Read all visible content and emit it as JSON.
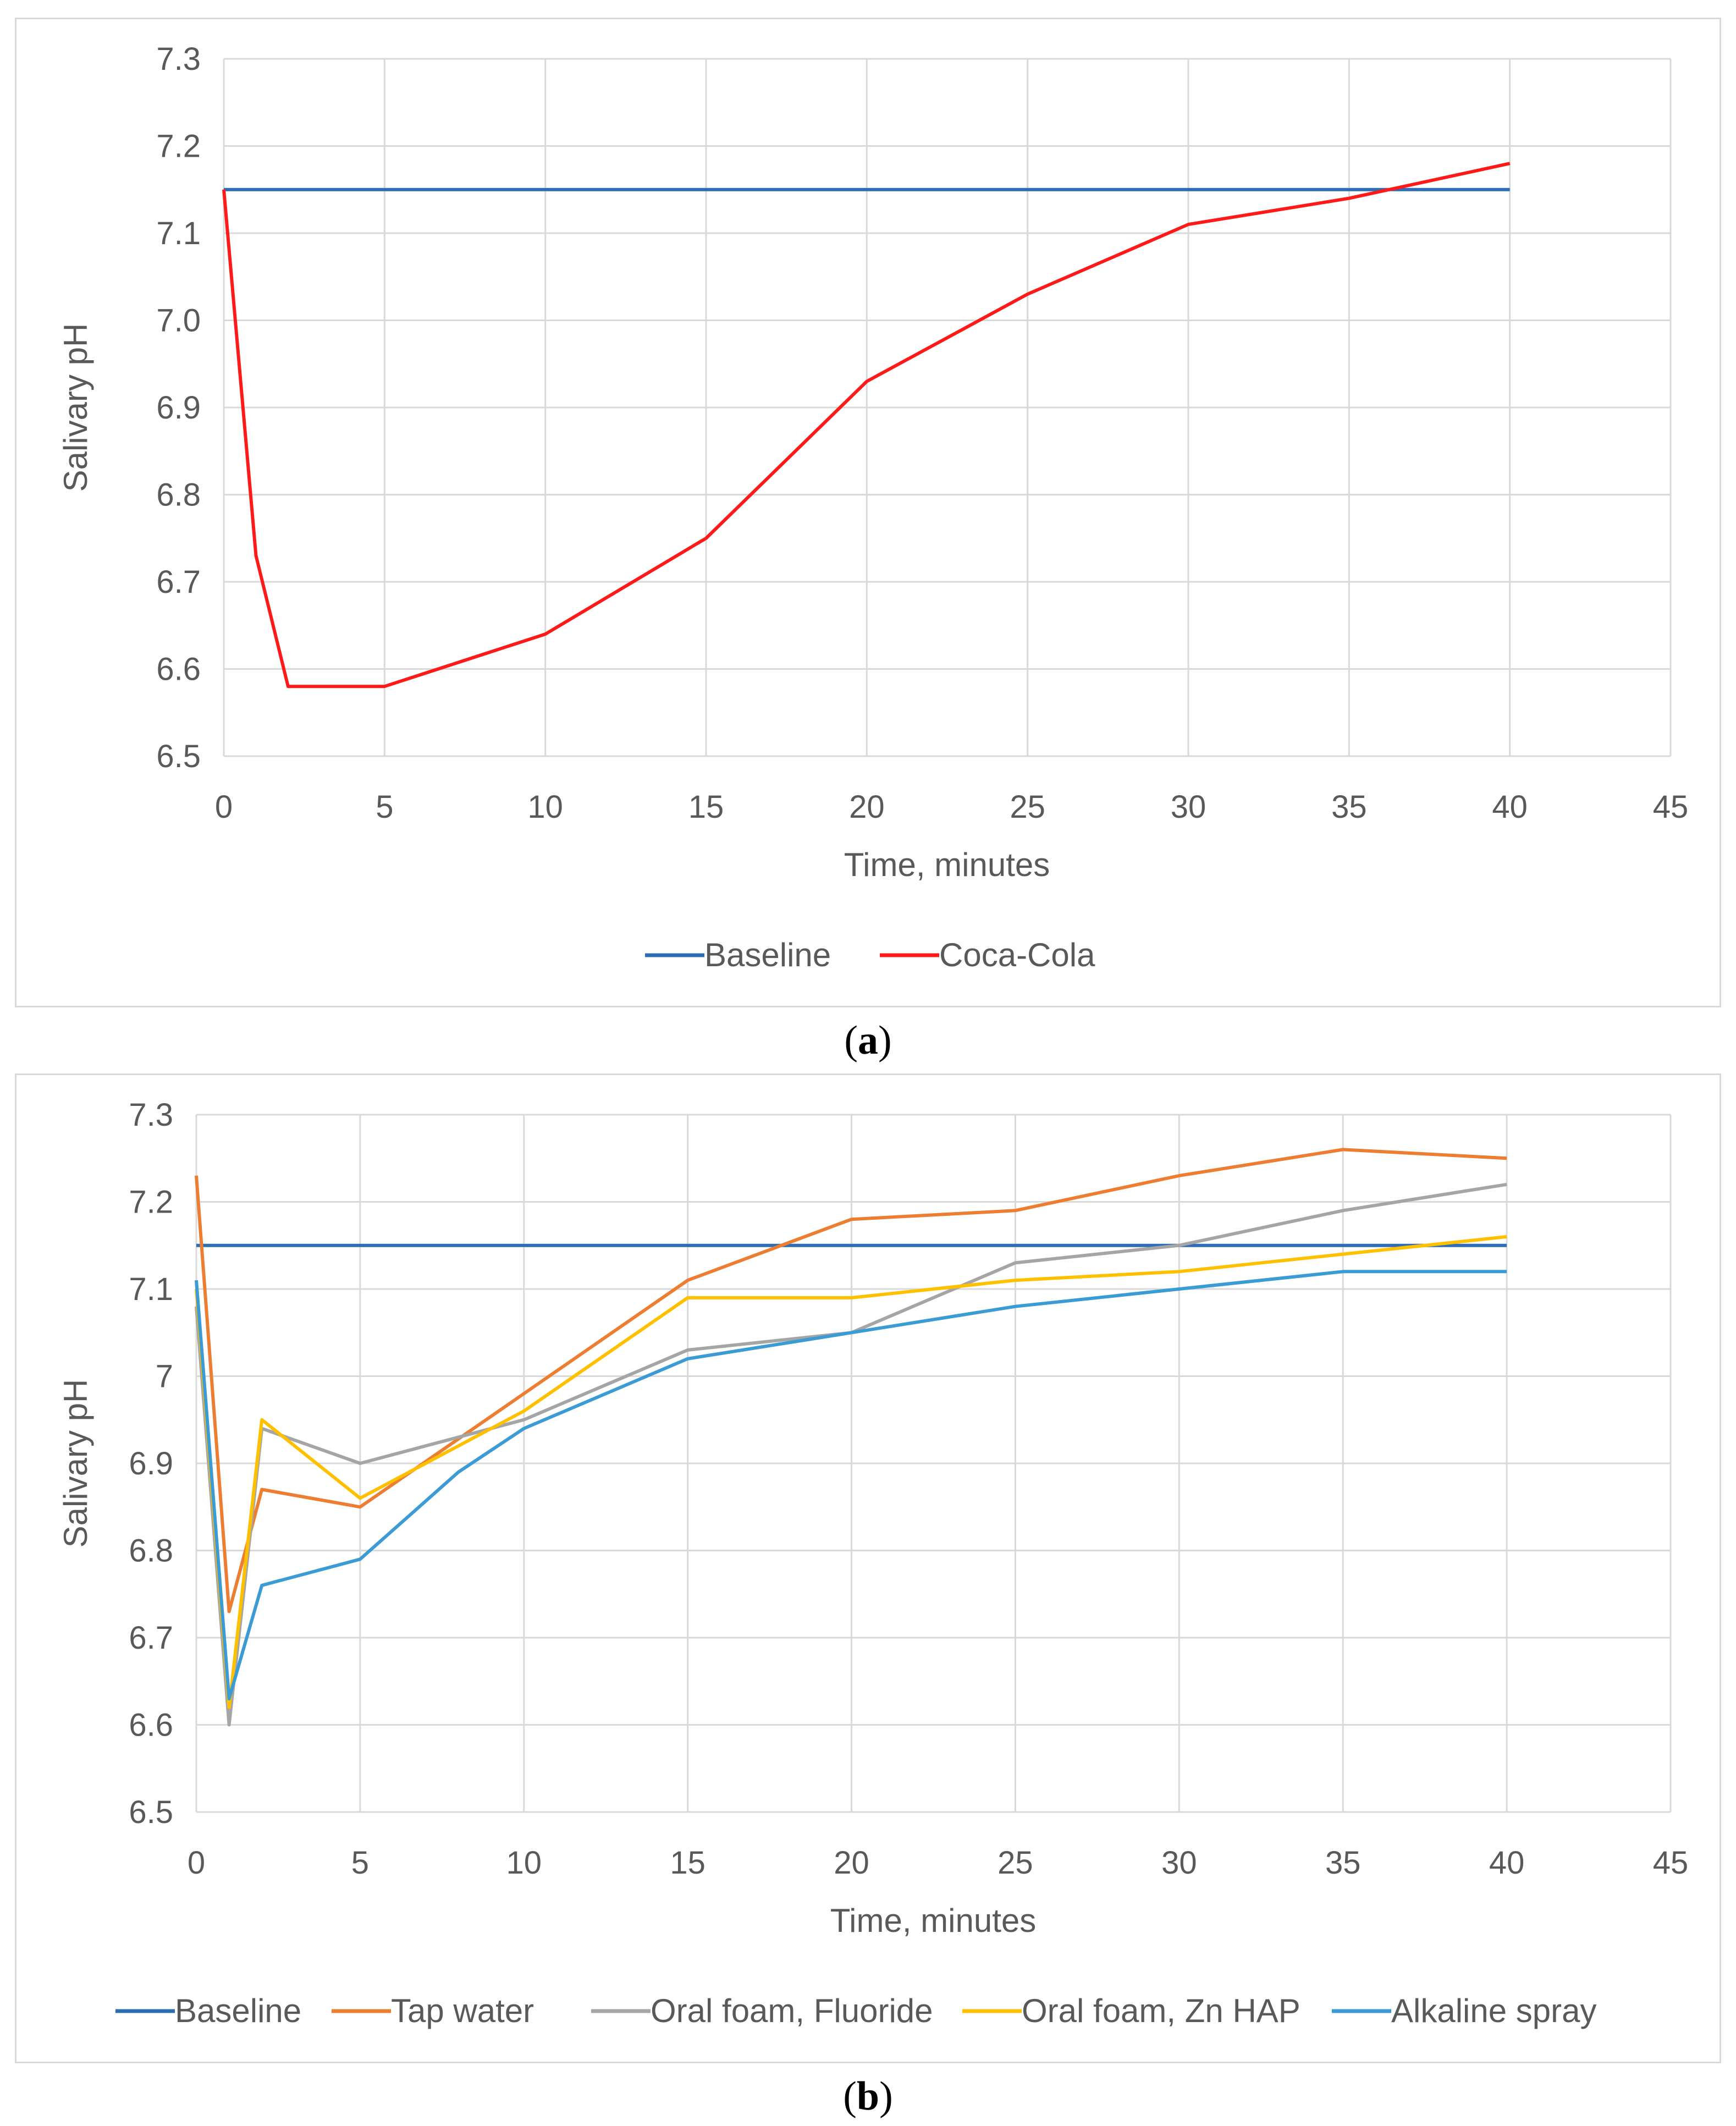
{
  "chart_data": [
    {
      "type": "line",
      "panel_label": "a",
      "xlabel": "Time, minutes",
      "ylabel": "Salivary pH",
      "xlim": [
        0,
        45
      ],
      "ylim": [
        6.5,
        7.3
      ],
      "x_ticks": [
        "0",
        "5",
        "10",
        "15",
        "20",
        "25",
        "30",
        "35",
        "40",
        "45"
      ],
      "y_ticks": [
        "6.5",
        "6.6",
        "6.7",
        "6.8",
        "6.9",
        "7.0",
        "7.1",
        "7.2",
        "7.3"
      ],
      "grid": true,
      "legend_position": "bottom",
      "series": [
        {
          "name": "Baseline",
          "color": "#2e6db4",
          "points": [
            [
              0,
              7.15
            ],
            [
              40,
              7.15
            ]
          ]
        },
        {
          "name": "Coca-Cola",
          "color": "#ff1a1a",
          "points": [
            [
              0,
              7.15
            ],
            [
              1,
              6.73
            ],
            [
              2,
              6.58
            ],
            [
              5,
              6.58
            ],
            [
              10,
              6.64
            ],
            [
              15,
              6.75
            ],
            [
              20,
              6.93
            ],
            [
              25,
              7.03
            ],
            [
              30,
              7.11
            ],
            [
              35,
              7.14
            ],
            [
              40,
              7.18
            ]
          ]
        }
      ]
    },
    {
      "type": "line",
      "panel_label": "b",
      "xlabel": "Time, minutes",
      "ylabel": "Salivary pH",
      "xlim": [
        0,
        45
      ],
      "ylim": [
        6.5,
        7.3
      ],
      "x_ticks": [
        "0",
        "5",
        "10",
        "15",
        "20",
        "25",
        "30",
        "35",
        "40",
        "45"
      ],
      "y_ticks": [
        "6.5",
        "6.6",
        "6.7",
        "6.8",
        "6.9",
        "7",
        "7.1",
        "7.2",
        "7.3"
      ],
      "grid": true,
      "legend_position": "bottom",
      "series": [
        {
          "name": "Baseline",
          "color": "#2e6db4",
          "points": [
            [
              0,
              7.15
            ],
            [
              40,
              7.15
            ]
          ]
        },
        {
          "name": "Tap water",
          "color": "#ed7d31",
          "points": [
            [
              0,
              7.23
            ],
            [
              1,
              6.73
            ],
            [
              2,
              6.87
            ],
            [
              5,
              6.85
            ],
            [
              10,
              6.98
            ],
            [
              15,
              7.11
            ],
            [
              20,
              7.18
            ],
            [
              25,
              7.19
            ],
            [
              30,
              7.23
            ],
            [
              35,
              7.26
            ],
            [
              40,
              7.25
            ]
          ]
        },
        {
          "name": "Oral foam, Fluoride",
          "color": "#a5a5a5",
          "points": [
            [
              0,
              7.08
            ],
            [
              1,
              6.6
            ],
            [
              2,
              6.94
            ],
            [
              5,
              6.9
            ],
            [
              10,
              6.95
            ],
            [
              15,
              7.03
            ],
            [
              20,
              7.05
            ],
            [
              25,
              7.13
            ],
            [
              30,
              7.15
            ],
            [
              35,
              7.19
            ],
            [
              40,
              7.22
            ]
          ]
        },
        {
          "name": "Oral foam, Zn HAP",
          "color": "#ffc000",
          "points": [
            [
              0,
              7.1
            ],
            [
              1,
              6.62
            ],
            [
              2,
              6.95
            ],
            [
              5,
              6.86
            ],
            [
              10,
              6.96
            ],
            [
              15,
              7.09
            ],
            [
              20,
              7.09
            ],
            [
              25,
              7.11
            ],
            [
              30,
              7.12
            ],
            [
              35,
              7.14
            ],
            [
              40,
              7.16
            ]
          ]
        },
        {
          "name": "Alkaline spray",
          "color": "#3a9bd5",
          "points": [
            [
              0,
              7.11
            ],
            [
              1,
              6.63
            ],
            [
              2,
              6.76
            ],
            [
              5,
              6.79
            ],
            [
              8,
              6.89
            ],
            [
              10,
              6.94
            ],
            [
              15,
              7.02
            ],
            [
              20,
              7.05
            ],
            [
              25,
              7.08
            ],
            [
              30,
              7.1
            ],
            [
              35,
              7.12
            ],
            [
              40,
              7.12
            ]
          ]
        }
      ]
    }
  ]
}
